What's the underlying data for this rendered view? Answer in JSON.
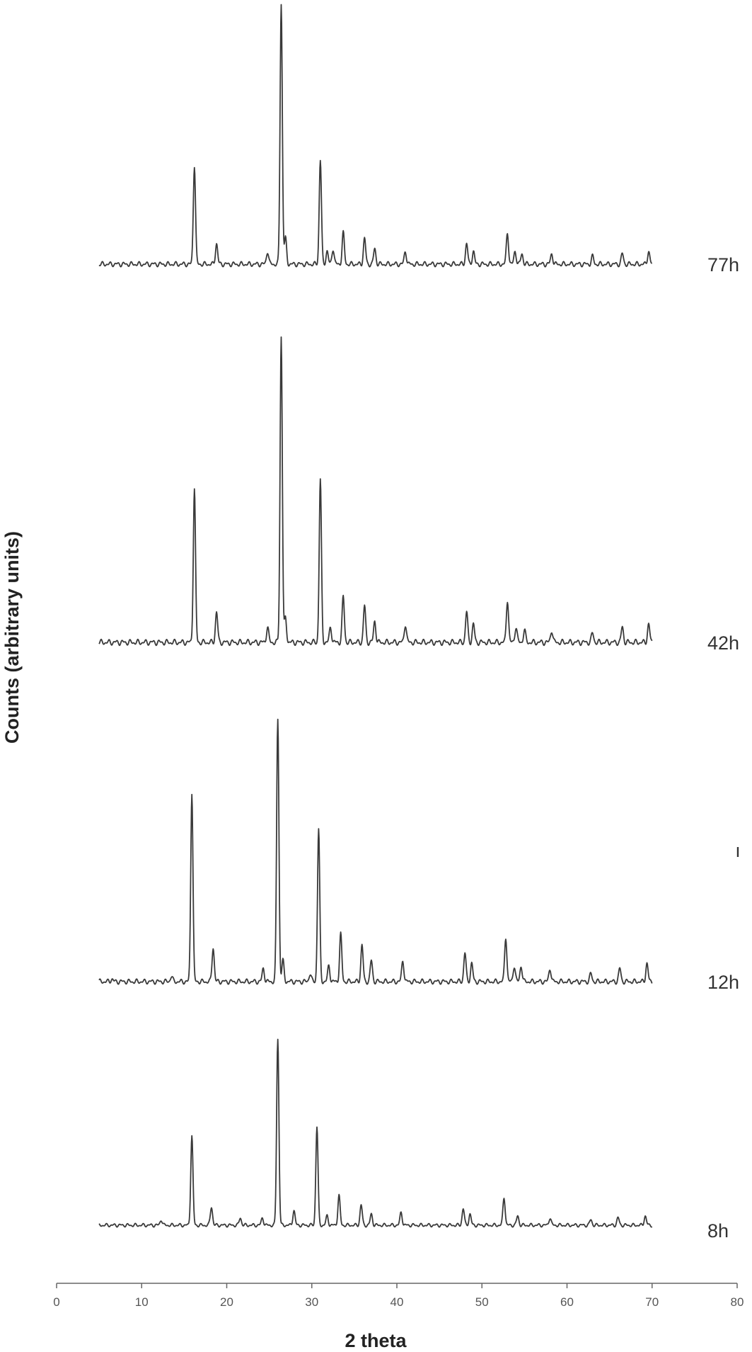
{
  "chart_data": {
    "type": "line",
    "xlabel": "2 theta",
    "ylabel": "Counts (arbitrary units)",
    "xlim": [
      0,
      80
    ],
    "x_ticks": [
      0,
      10,
      20,
      30,
      40,
      50,
      60,
      70,
      80
    ],
    "y_ticks": "none",
    "grid": false,
    "layout": "stacked-offset",
    "stray_mark": "ı",
    "series": [
      {
        "name": "77h",
        "x_range": [
          5,
          70
        ],
        "peaks": [
          {
            "x": 16.2,
            "y": 38
          },
          {
            "x": 18.8,
            "y": 8
          },
          {
            "x": 24.8,
            "y": 5
          },
          {
            "x": 26.4,
            "y": 100
          },
          {
            "x": 26.9,
            "y": 10
          },
          {
            "x": 31.0,
            "y": 40
          },
          {
            "x": 31.8,
            "y": 5
          },
          {
            "x": 32.5,
            "y": 6
          },
          {
            "x": 33.7,
            "y": 12
          },
          {
            "x": 36.2,
            "y": 10
          },
          {
            "x": 37.4,
            "y": 6
          },
          {
            "x": 41.0,
            "y": 5
          },
          {
            "x": 48.2,
            "y": 8
          },
          {
            "x": 49.0,
            "y": 5
          },
          {
            "x": 53.0,
            "y": 12
          },
          {
            "x": 53.9,
            "y": 5
          },
          {
            "x": 54.7,
            "y": 4
          },
          {
            "x": 58.2,
            "y": 4
          },
          {
            "x": 63.0,
            "y": 3
          },
          {
            "x": 66.5,
            "y": 4
          },
          {
            "x": 69.6,
            "y": 5
          }
        ]
      },
      {
        "name": "42h",
        "x_range": [
          5,
          70
        ],
        "peaks": [
          {
            "x": 16.2,
            "y": 50
          },
          {
            "x": 18.8,
            "y": 10
          },
          {
            "x": 24.8,
            "y": 5
          },
          {
            "x": 26.4,
            "y": 100
          },
          {
            "x": 26.9,
            "y": 8
          },
          {
            "x": 31.0,
            "y": 53
          },
          {
            "x": 32.2,
            "y": 5
          },
          {
            "x": 33.7,
            "y": 15
          },
          {
            "x": 36.2,
            "y": 12
          },
          {
            "x": 37.4,
            "y": 7
          },
          {
            "x": 41.0,
            "y": 6
          },
          {
            "x": 48.2,
            "y": 10
          },
          {
            "x": 49.0,
            "y": 6
          },
          {
            "x": 53.0,
            "y": 14
          },
          {
            "x": 54.0,
            "y": 5
          },
          {
            "x": 55.0,
            "y": 4
          },
          {
            "x": 58.2,
            "y": 4
          },
          {
            "x": 63.0,
            "y": 3
          },
          {
            "x": 66.5,
            "y": 5
          },
          {
            "x": 69.6,
            "y": 6
          }
        ]
      },
      {
        "name": "12h",
        "x_range": [
          5,
          70
        ],
        "peaks": [
          {
            "x": 6.5,
            "y": 1
          },
          {
            "x": 13.5,
            "y": 2
          },
          {
            "x": 15.9,
            "y": 72
          },
          {
            "x": 18.4,
            "y": 13
          },
          {
            "x": 24.3,
            "y": 5
          },
          {
            "x": 26.0,
            "y": 100
          },
          {
            "x": 26.6,
            "y": 8
          },
          {
            "x": 29.8,
            "y": 3
          },
          {
            "x": 30.8,
            "y": 58
          },
          {
            "x": 32.0,
            "y": 6
          },
          {
            "x": 33.4,
            "y": 18
          },
          {
            "x": 35.9,
            "y": 14
          },
          {
            "x": 37.0,
            "y": 8
          },
          {
            "x": 40.7,
            "y": 8
          },
          {
            "x": 48.0,
            "y": 11
          },
          {
            "x": 48.8,
            "y": 7
          },
          {
            "x": 52.8,
            "y": 17
          },
          {
            "x": 53.8,
            "y": 6
          },
          {
            "x": 54.6,
            "y": 6
          },
          {
            "x": 58.0,
            "y": 5
          },
          {
            "x": 62.8,
            "y": 3
          },
          {
            "x": 66.2,
            "y": 5
          },
          {
            "x": 69.4,
            "y": 7
          }
        ]
      },
      {
        "name": "8h",
        "x_range": [
          5,
          70
        ],
        "peaks": [
          {
            "x": 12.3,
            "y": 3
          },
          {
            "x": 15.9,
            "y": 48
          },
          {
            "x": 18.2,
            "y": 10
          },
          {
            "x": 21.6,
            "y": 4
          },
          {
            "x": 24.2,
            "y": 4
          },
          {
            "x": 26.0,
            "y": 100
          },
          {
            "x": 27.9,
            "y": 8
          },
          {
            "x": 30.6,
            "y": 53
          },
          {
            "x": 31.8,
            "y": 5
          },
          {
            "x": 33.2,
            "y": 16
          },
          {
            "x": 35.8,
            "y": 11
          },
          {
            "x": 37.0,
            "y": 6
          },
          {
            "x": 40.5,
            "y": 7
          },
          {
            "x": 47.8,
            "y": 9
          },
          {
            "x": 48.6,
            "y": 6
          },
          {
            "x": 52.6,
            "y": 15
          },
          {
            "x": 54.2,
            "y": 5
          },
          {
            "x": 58.0,
            "y": 4
          },
          {
            "x": 62.8,
            "y": 3
          },
          {
            "x": 66.0,
            "y": 4
          },
          {
            "x": 69.2,
            "y": 5
          }
        ]
      }
    ]
  },
  "colors": {
    "trace": "#3a3a3a",
    "axis": "#666666",
    "text": "#222222"
  }
}
